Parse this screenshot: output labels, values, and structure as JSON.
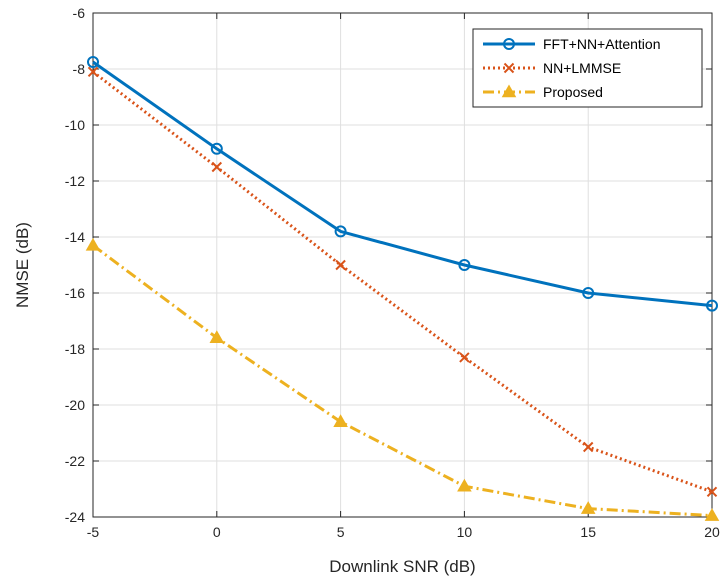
{
  "chart_data": {
    "type": "line",
    "title": "",
    "xlabel": "Downlink SNR (dB)",
    "ylabel": "NMSE (dB)",
    "x": [
      -5,
      0,
      5,
      10,
      15,
      20
    ],
    "xlim": [
      -5,
      20
    ],
    "ylim": [
      -24,
      -6
    ],
    "xticks": [
      -5,
      0,
      5,
      10,
      15,
      20
    ],
    "yticks": [
      -24,
      -22,
      -20,
      -18,
      -16,
      -14,
      -12,
      -10,
      -8,
      -6
    ],
    "grid": true,
    "legend_position": "top-right",
    "series": [
      {
        "name": "FFT+NN+Attention",
        "values": [
          -7.75,
          -10.85,
          -13.8,
          -15.0,
          -16.0,
          -16.45
        ],
        "color": "#0072BD",
        "marker": "circle",
        "line_style": "solid"
      },
      {
        "name": "NN+LMMSE",
        "values": [
          -8.1,
          -11.5,
          -15.0,
          -18.3,
          -21.5,
          -23.1
        ],
        "color": "#D95319",
        "marker": "x",
        "line_style": "dotted"
      },
      {
        "name": "Proposed",
        "values": [
          -14.3,
          -17.6,
          -20.6,
          -22.9,
          -23.7,
          -23.95
        ],
        "color": "#EDB120",
        "marker": "triangle",
        "line_style": "dashdot"
      }
    ]
  }
}
